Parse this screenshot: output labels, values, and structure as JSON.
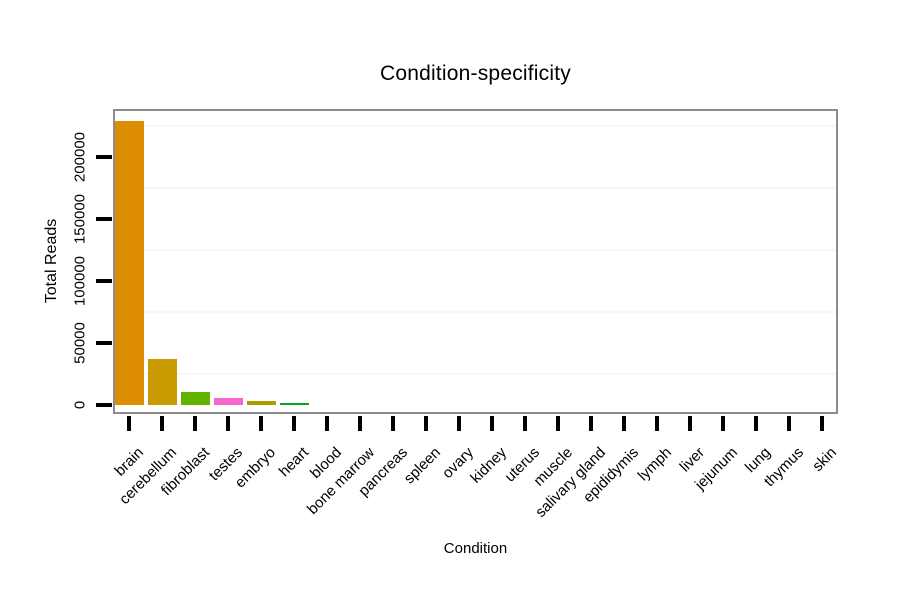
{
  "title": "Condition-specificity",
  "axes": {
    "x_title": "Condition",
    "y_title": "Total Reads"
  },
  "colors": {
    "frame": "#8c8c8c",
    "tick": "#000000",
    "minor_gridline": "#f6f6f6",
    "background": "#ffffff"
  },
  "chart_data": {
    "type": "bar",
    "title": "Condition-specificity",
    "xlabel": "Condition",
    "ylabel": "Total Reads",
    "ylim": [
      0,
      238000
    ],
    "yticks": [
      0,
      50000,
      100000,
      150000,
      200000
    ],
    "ytick_labels": [
      "0",
      "50000",
      "100000",
      "150000",
      "200000"
    ],
    "minor_gridlines": [
      25000,
      75000,
      125000,
      175000,
      225000
    ],
    "grid": "minor horizontal only, very faint",
    "legend_position": "none",
    "categories": [
      "brain",
      "cerebellum",
      "fibroblast",
      "testes",
      "embryo",
      "heart",
      "blood",
      "bone marrow",
      "pancreas",
      "spleen",
      "ovary",
      "kidney",
      "uterus",
      "muscle",
      "salivary gland",
      "epididymis",
      "lymph",
      "liver",
      "jejunum",
      "lung",
      "thymus",
      "skin"
    ],
    "values": [
      229000,
      37000,
      10500,
      5500,
      3200,
      1500,
      0,
      0,
      0,
      0,
      0,
      0,
      0,
      0,
      0,
      0,
      0,
      0,
      0,
      0,
      0,
      0
    ],
    "bar_colors": [
      "#dd8d00",
      "#c89b00",
      "#64b200",
      "#f566ce",
      "#ad9c00",
      "#00a81e",
      null,
      null,
      null,
      null,
      null,
      null,
      null,
      null,
      null,
      null,
      null,
      null,
      null,
      null,
      null,
      null
    ]
  }
}
